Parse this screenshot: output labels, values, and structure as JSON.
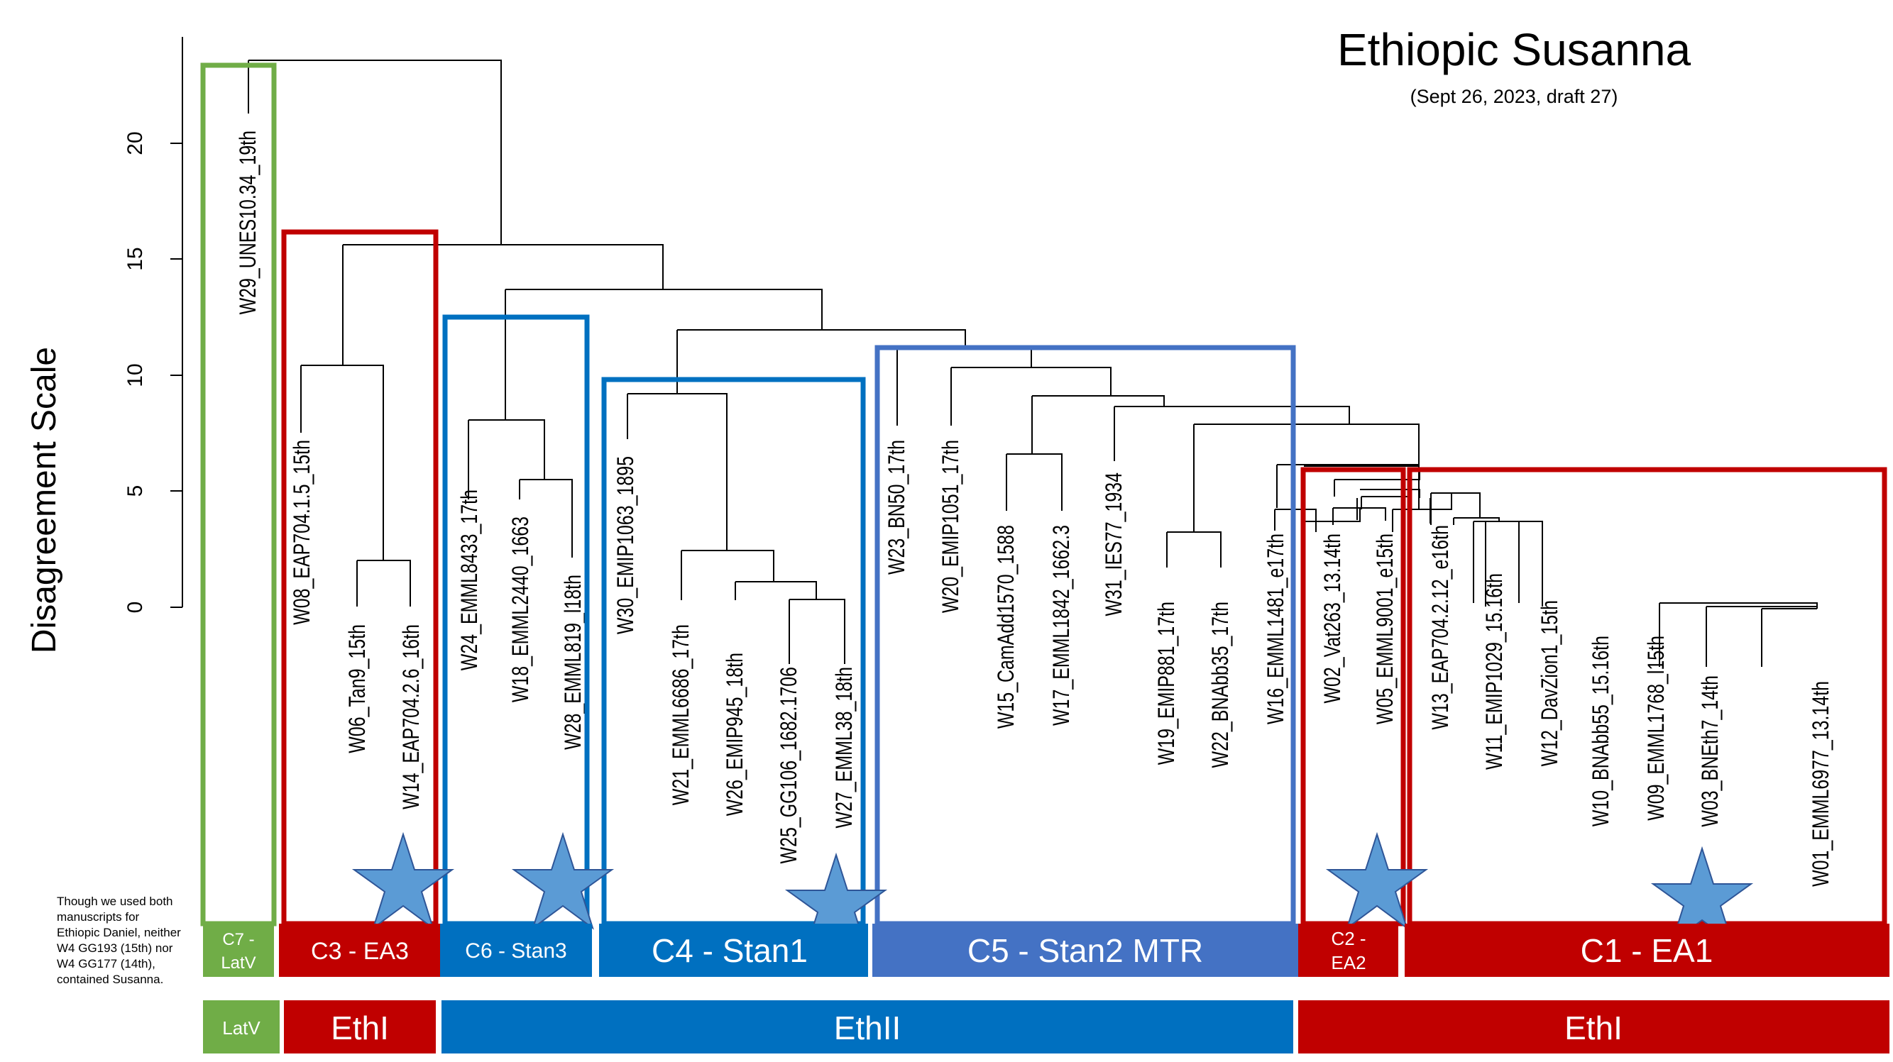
{
  "title": "Ethiopic Susanna",
  "subtitle": "(Sept 26, 2023, draft 27)",
  "axis": {
    "label": "Disagreement Scale",
    "ticks": [
      "0",
      "5",
      "10",
      "15",
      "20"
    ]
  },
  "note": "Though we used both manuscripts for Ethiopic Daniel, neither W4 GG193 (15th) nor W4 GG177 (14th), contained Susanna.",
  "colors": {
    "red": "#C00000",
    "blue": "#0070C0",
    "stan2": "#4472C4",
    "green": "#70AD47",
    "star": "#5B9BD5"
  },
  "leaves": [
    "W29_UNES10.34_19th",
    "W08_EAP704.1.5_15th",
    "W06_Tan9_15th",
    "W14_EAP704.2.6_16th",
    "W24_EMML8433_17th",
    "W18_EMML2440_1663",
    "W28_EMML819_l18th",
    "W30_EMIP1063_1895",
    "W21_EMML6686_17th",
    "W26_EMIP945_18th",
    "W25_GG106_1682.1706",
    "W27_EMML38_18th",
    "W23_BN50_17th",
    "W20_EMIP1051_17th",
    "W15_CamAdd1570_1588",
    "W17_EMML1842_1662.3",
    "W31_IES77_1934",
    "W19_EMIP881_17th",
    "W22_BNAbb35_17th",
    "W16_EMML1481_e17th",
    "W02_Vat263_13.14th",
    "W05_EMML9001_e15th",
    "W13_EAP704.2.12_e16th",
    "W11_EMIP1029_15.16th",
    "W12_DavZion1_15th",
    "W10_BNAbb55_15.16th",
    "W09_EMML1768_l15th",
    "W03_BNEth7_14th",
    "W01_EMML6977_13.14th"
  ],
  "clusters": [
    {
      "id": "C7",
      "line1": "C7 -",
      "line2": "LatV"
    },
    {
      "id": "C3",
      "label": "C3 - EA3"
    },
    {
      "id": "C6",
      "label": "C6 - Stan3"
    },
    {
      "id": "C4",
      "label": "C4 - Stan1"
    },
    {
      "id": "C5",
      "label": "C5 - Stan2 MTR"
    },
    {
      "id": "C2",
      "line1": "C2 -",
      "line2": "EA2"
    },
    {
      "id": "C1",
      "label": "C1 - EA1"
    }
  ],
  "groups": [
    {
      "id": "latv",
      "label": "LatV"
    },
    {
      "id": "ethi-left",
      "label": "EthI"
    },
    {
      "id": "ethii",
      "label": "EthII"
    },
    {
      "id": "ethi-right",
      "label": "EthI"
    }
  ]
}
